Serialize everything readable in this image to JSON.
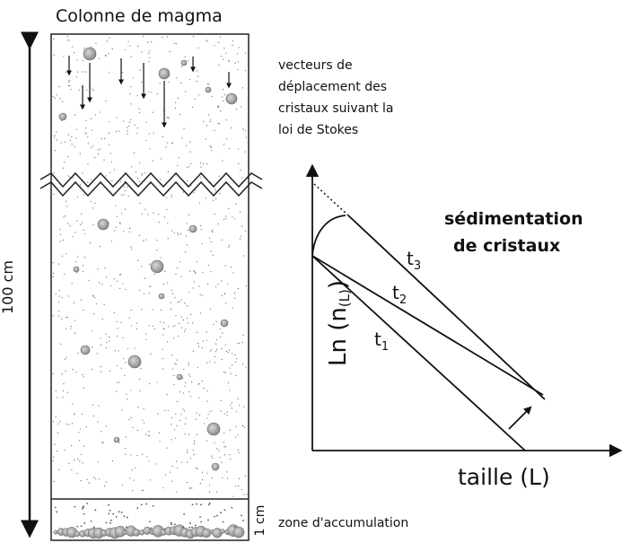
{
  "title": "Colonne de magma",
  "column_height_label": "100 cm",
  "accumulation": {
    "thickness_label": "1 cm",
    "label": "zone d'accumulation"
  },
  "vectors_caption": [
    "vecteurs de",
    "déplacement des",
    "cristaux suivant la",
    "loi de Stokes"
  ],
  "graph": {
    "heading": [
      "sédimentation",
      "de cristaux"
    ],
    "y_axis_label": {
      "main": "Ln (n",
      "sub": "(L)",
      "close": ")"
    },
    "x_axis_label": "taille (L)",
    "curves": [
      {
        "base": "t",
        "sub": "1"
      },
      {
        "base": "t",
        "sub": "2"
      },
      {
        "base": "t",
        "sub": "3"
      }
    ]
  }
}
